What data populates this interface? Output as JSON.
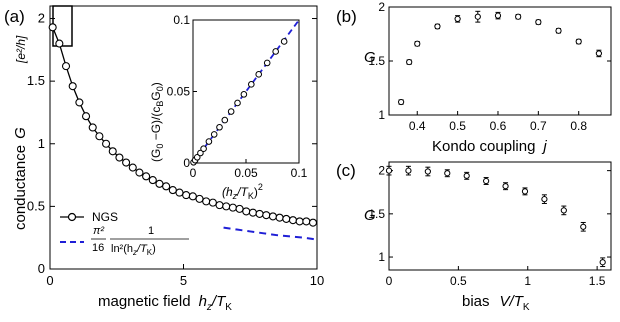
{
  "figure": {
    "background": "#ffffff",
    "accent_blue": "#1f1fd6"
  },
  "chart_data": [
    {
      "panel": "(a)",
      "type": "line",
      "xlabel_prefix": "magnetic field",
      "xlabel_var": "h",
      "xlabel_sub": "z",
      "xlabel_div": "/T",
      "xlabel_div_sub": "K",
      "ylabel_prefix": "conductance",
      "ylabel_var": "G",
      "yunit": "[e²/h]",
      "xlim": [
        0,
        10
      ],
      "ylim": [
        0,
        2.1
      ],
      "xticks": [
        "0",
        "5",
        "10"
      ],
      "yticks": [
        "0",
        "0.5",
        "1",
        "1.5",
        "2"
      ],
      "series": [
        {
          "name": "NGS",
          "style": "circles-with-line",
          "color": "#000000",
          "x": [
            0.1,
            0.35,
            0.6,
            0.85,
            1.1,
            1.35,
            1.6,
            1.85,
            2.1,
            2.35,
            2.6,
            2.85,
            3.1,
            3.35,
            3.6,
            3.85,
            4.1,
            4.35,
            4.6,
            4.85,
            5.1,
            5.35,
            5.6,
            5.85,
            6.1,
            6.35,
            6.6,
            6.85,
            7.1,
            7.35,
            7.6,
            7.85,
            8.1,
            8.35,
            8.6,
            8.85,
            9.1,
            9.35,
            9.6,
            9.85
          ],
          "y": [
            1.93,
            1.8,
            1.62,
            1.46,
            1.33,
            1.22,
            1.13,
            1.06,
            1.0,
            0.94,
            0.89,
            0.85,
            0.81,
            0.77,
            0.74,
            0.71,
            0.68,
            0.66,
            0.63,
            0.61,
            0.59,
            0.58,
            0.56,
            0.54,
            0.53,
            0.51,
            0.5,
            0.49,
            0.48,
            0.46,
            0.45,
            0.44,
            0.43,
            0.42,
            0.41,
            0.4,
            0.39,
            0.38,
            0.38,
            0.37
          ]
        },
        {
          "name_formula": {
            "num": "π²",
            "den": "16",
            "frac_num": "1",
            "frac_den": "ln²(h",
            "frac_den_sub": "z",
            "frac_den_tail": "/T",
            "frac_den_tail_sub": "K",
            "close": ")"
          },
          "style": "dashed",
          "color": "#1f1fd6",
          "x": [
            6.5,
            7.0,
            7.5,
            8.0,
            8.5,
            9.0,
            9.5,
            10.0
          ],
          "y": [
            0.33,
            0.315,
            0.3,
            0.285,
            0.27,
            0.26,
            0.25,
            0.235
          ]
        }
      ],
      "legend": "bottom-left",
      "inset": {
        "ylabel": "(G₀−G)/(c_B G₀)",
        "ylabel_parts": {
          "a": "(G",
          "a_sub": "0",
          "b": " −G)/(c",
          "b_sub": "B",
          "c": "G",
          "c_sub": "0",
          "d": ")"
        },
        "xlabel_parts": {
          "a": "(h",
          "a_sub": "z",
          "b": "/T",
          "b_sub": "K",
          "c": ")",
          "c_sup": "2"
        },
        "xlim": [
          0,
          0.1
        ],
        "ylim": [
          0,
          0.1
        ],
        "xticks": [
          "0",
          "0.05",
          "0.1"
        ],
        "yticks": [
          "0",
          "0.05",
          "0.1"
        ],
        "points": {
          "x": [
            0.0005,
            0.002,
            0.004,
            0.007,
            0.01,
            0.015,
            0.02,
            0.025,
            0.03,
            0.036,
            0.042,
            0.048,
            0.055,
            0.062,
            0.07,
            0.078,
            0.086
          ],
          "y": [
            0.0005,
            0.002,
            0.004,
            0.007,
            0.01,
            0.015,
            0.02,
            0.025,
            0.03,
            0.036,
            0.042,
            0.048,
            0.055,
            0.062,
            0.07,
            0.078,
            0.085
          ]
        },
        "fit": {
          "x": [
            0,
            0.1
          ],
          "y": [
            0,
            0.1
          ],
          "style": "dashed",
          "color": "#1f1fd6"
        }
      }
    },
    {
      "panel": "(b)",
      "type": "scatter",
      "ylabel": "G",
      "xlabel_prefix": "Kondo coupling",
      "xlabel_var": "j",
      "xlim": [
        0.33,
        0.88
      ],
      "ylim": [
        1,
        2
      ],
      "xticks": [
        "0.4",
        "0.5",
        "0.6",
        "0.7",
        "0.8"
      ],
      "yticks": [
        "1",
        "1.5",
        "2"
      ],
      "x": [
        0.36,
        0.38,
        0.4,
        0.45,
        0.5,
        0.55,
        0.6,
        0.65,
        0.7,
        0.75,
        0.8,
        0.85
      ],
      "y": [
        1.12,
        1.49,
        1.66,
        1.82,
        1.89,
        1.91,
        1.92,
        1.91,
        1.86,
        1.78,
        1.68,
        1.57
      ],
      "err": [
        0.02,
        0.02,
        0.02,
        0.02,
        0.03,
        0.05,
        0.03,
        0.02,
        0.02,
        0.02,
        0.02,
        0.03
      ]
    },
    {
      "panel": "(c)",
      "type": "scatter",
      "ylabel": "G",
      "xlabel_prefix": "bias",
      "xlabel_var": "V",
      "xlabel_div": "/T",
      "xlabel_div_sub": "K",
      "xlim": [
        0,
        1.6
      ],
      "ylim": [
        0.85,
        2.1
      ],
      "xticks": [
        "0",
        "0.5",
        "1",
        "1.5"
      ],
      "yticks": [
        "1",
        "1.5",
        "2"
      ],
      "x": [
        0,
        0.14,
        0.28,
        0.42,
        0.56,
        0.7,
        0.84,
        0.98,
        1.12,
        1.26,
        1.4,
        1.54
      ],
      "y": [
        2.0,
        2.0,
        1.99,
        1.97,
        1.94,
        1.88,
        1.82,
        1.76,
        1.67,
        1.54,
        1.35,
        0.94
      ],
      "err": [
        0.05,
        0.05,
        0.05,
        0.04,
        0.04,
        0.04,
        0.04,
        0.04,
        0.05,
        0.05,
        0.05,
        0.05
      ]
    }
  ]
}
